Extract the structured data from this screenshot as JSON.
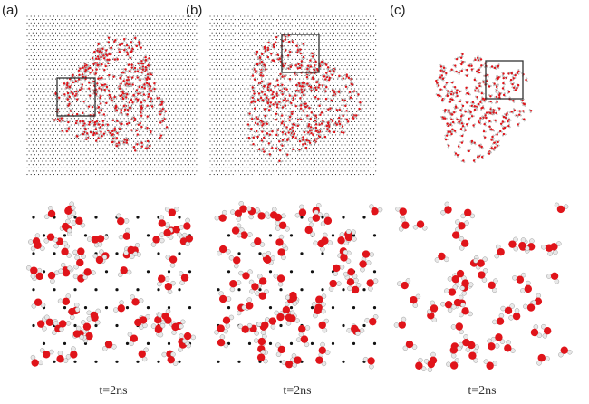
{
  "panels": [
    {
      "label": "(a)",
      "time_label": "t=2ns",
      "substrate_lattice": true
    },
    {
      "label": "(b)",
      "time_label": "t=2ns",
      "substrate_lattice": true
    },
    {
      "label": "(c)",
      "time_label": "t=2ns",
      "substrate_lattice": false
    }
  ],
  "colors": {
    "oxygen": "#e0141a",
    "hydrogen": "#e8e8e8",
    "lattice_atom": "#111111",
    "zoom_box": "#333333"
  }
}
